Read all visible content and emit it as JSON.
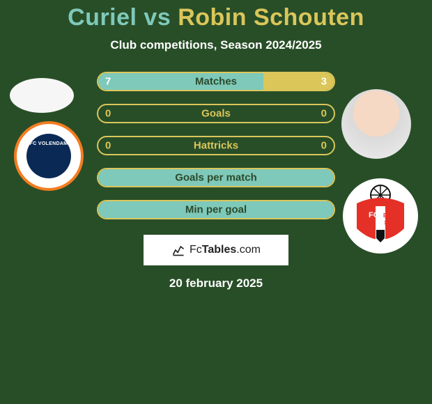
{
  "title": {
    "player1_name": "Curiel",
    "vs": " vs ",
    "player2_name": "Robin Schouten",
    "player1_color": "#7fc9ba",
    "player2_color": "#dbc65a"
  },
  "subtitle": "Club competitions, Season 2024/2025",
  "stats": [
    {
      "label": "Matches",
      "left_val": "7",
      "right_val": "3",
      "left_pct": 70,
      "right_pct": 30,
      "has_fill": true,
      "show_vals": true
    },
    {
      "label": "Goals",
      "left_val": "0",
      "right_val": "0",
      "left_pct": 0,
      "right_pct": 0,
      "has_fill": false,
      "show_vals": true
    },
    {
      "label": "Hattricks",
      "left_val": "0",
      "right_val": "0",
      "left_pct": 0,
      "right_pct": 0,
      "has_fill": false,
      "show_vals": true
    },
    {
      "label": "Goals per match",
      "left_val": "",
      "right_val": "",
      "left_pct": 100,
      "right_pct": 0,
      "has_fill": true,
      "show_vals": false
    },
    {
      "label": "Min per goal",
      "left_val": "",
      "right_val": "",
      "left_pct": 100,
      "right_pct": 0,
      "has_fill": true,
      "show_vals": false
    }
  ],
  "bar_style": {
    "border_color": "#dbc65a",
    "left_fill": "#7fc9ba",
    "right_fill": "#dbc65a",
    "label_color_fill": "#2b4a2b",
    "label_color_empty": "#dbc65a",
    "height": 28,
    "radius": 14
  },
  "footer": {
    "brand_prefix": "Fc",
    "brand_main": "Tables",
    "brand_suffix": ".com"
  },
  "date": "20 february 2025",
  "clubs": {
    "left_name": "FC VOLENDAM",
    "right_name": "FC EMMEN",
    "right_year": "1925"
  },
  "colors": {
    "background": "#284e28",
    "white": "#ffffff"
  }
}
